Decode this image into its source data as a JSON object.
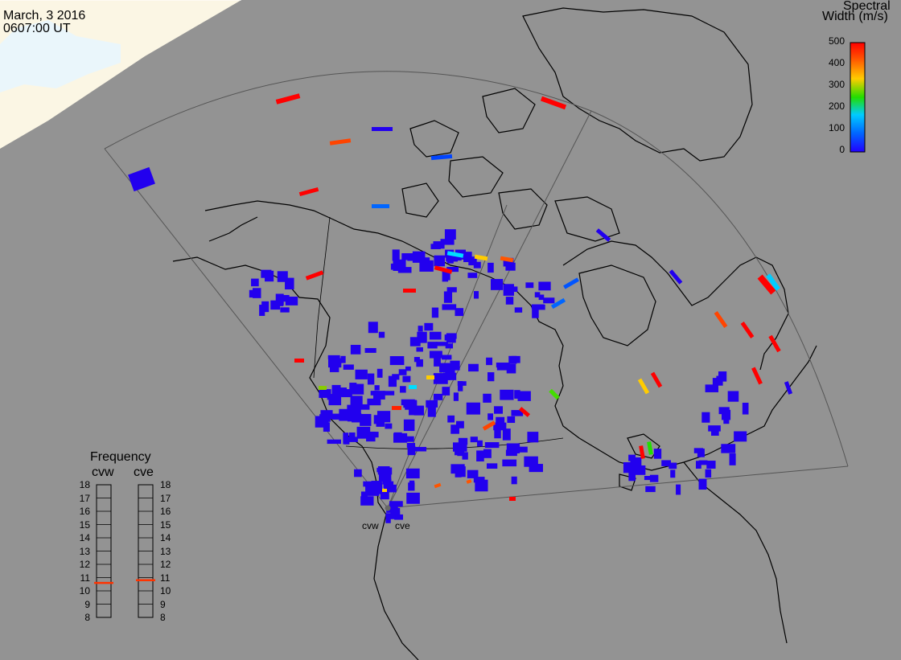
{
  "header": {
    "date": "March, 3 2016",
    "time": "0607:00 UT"
  },
  "colorbar": {
    "title_line1": "Spectral",
    "title_line2": "Width (m/s)",
    "ticks": [
      "500",
      "400",
      "300",
      "200",
      "100",
      "0"
    ],
    "colors": [
      "#ff0000",
      "#ff6600",
      "#ffcc00",
      "#22dd00",
      "#00ccff",
      "#0055ff",
      "#2200ff"
    ]
  },
  "frequency": {
    "title": "Frequency",
    "radars": [
      {
        "name": "cvw",
        "value_mhz": 10.6
      },
      {
        "name": "cve",
        "value_mhz": 10.8
      }
    ],
    "scale": [
      "18",
      "17",
      "16",
      "15",
      "14",
      "13",
      "12",
      "11",
      "10",
      "9",
      "8"
    ],
    "marker_color": "#ff3300"
  },
  "radar_labels": [
    "cvw",
    "cve"
  ],
  "colors": {
    "ocean": "#939393",
    "daylight": "#eef7fb",
    "coast": "#000000",
    "fov": "#505050",
    "echo_low": "#2200ee"
  }
}
